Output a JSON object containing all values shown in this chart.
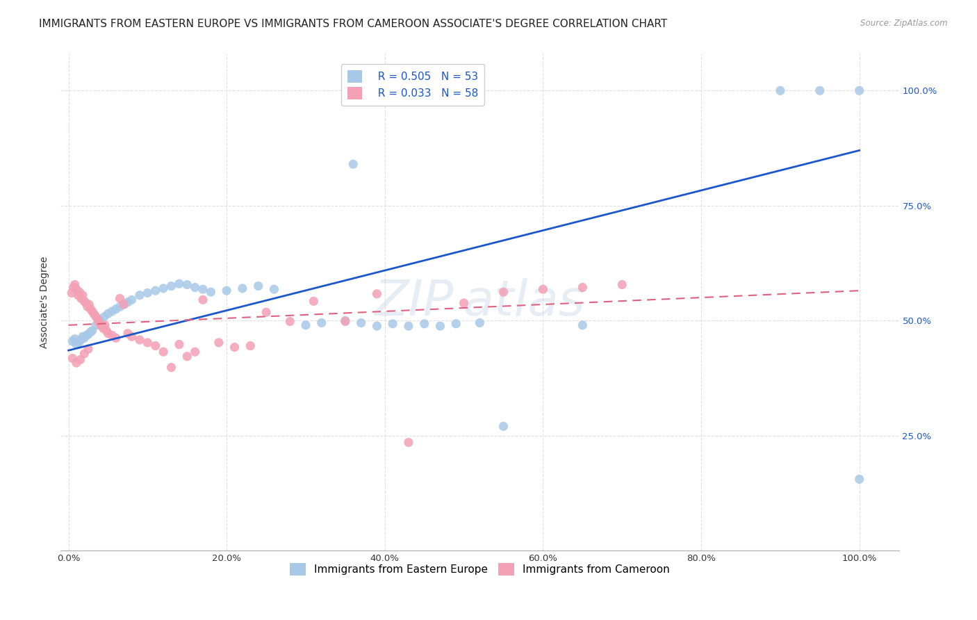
{
  "title": "IMMIGRANTS FROM EASTERN EUROPE VS IMMIGRANTS FROM CAMEROON ASSOCIATE'S DEGREE CORRELATION CHART",
  "source": "Source: ZipAtlas.com",
  "ylabel": "Associate's Degree",
  "legend_label_1": "Immigrants from Eastern Europe",
  "legend_label_2": "Immigrants from Cameroon",
  "r1": "0.505",
  "n1": "53",
  "r2": "0.033",
  "n2": "58",
  "color_blue": "#a8c8e8",
  "color_pink": "#f4a0b5",
  "line_blue": "#1a56cc",
  "line_pink": "#e06080",
  "bg_color": "#ffffff",
  "grid_color": "#e0e0e0",
  "xtick_labels": [
    "0.0%",
    "20.0%",
    "40.0%",
    "60.0%",
    "80.0%",
    "100.0%"
  ],
  "xtick_vals": [
    0.0,
    0.2,
    0.4,
    0.6,
    0.8,
    1.0
  ],
  "ytick_labels": [
    "25.0%",
    "50.0%",
    "75.0%",
    "100.0%"
  ],
  "ytick_vals": [
    0.25,
    0.5,
    0.75,
    1.0
  ],
  "ymin": 0.0,
  "ymax": 1.08,
  "blue_x": [
    0.005,
    0.008,
    0.01,
    0.013,
    0.016,
    0.018,
    0.02,
    0.023,
    0.025,
    0.028,
    0.03,
    0.035,
    0.04,
    0.045,
    0.05,
    0.055,
    0.06,
    0.065,
    0.07,
    0.075,
    0.08,
    0.09,
    0.1,
    0.11,
    0.12,
    0.13,
    0.14,
    0.15,
    0.16,
    0.17,
    0.18,
    0.2,
    0.22,
    0.24,
    0.26,
    0.3,
    0.32,
    0.35,
    0.37,
    0.39,
    0.41,
    0.43,
    0.45,
    0.47,
    0.49,
    0.52,
    0.55,
    0.65,
    0.9,
    0.95,
    1.0,
    1.0,
    0.36
  ],
  "blue_y": [
    0.455,
    0.46,
    0.448,
    0.452,
    0.458,
    0.465,
    0.462,
    0.468,
    0.47,
    0.475,
    0.478,
    0.49,
    0.5,
    0.508,
    0.515,
    0.52,
    0.525,
    0.53,
    0.535,
    0.54,
    0.545,
    0.555,
    0.56,
    0.565,
    0.57,
    0.575,
    0.58,
    0.578,
    0.572,
    0.568,
    0.562,
    0.565,
    0.57,
    0.575,
    0.568,
    0.49,
    0.495,
    0.5,
    0.495,
    0.488,
    0.493,
    0.488,
    0.493,
    0.488,
    0.493,
    0.495,
    0.27,
    0.49,
    1.0,
    1.0,
    1.0,
    0.155,
    0.84
  ],
  "pink_x": [
    0.004,
    0.006,
    0.008,
    0.01,
    0.012,
    0.014,
    0.016,
    0.018,
    0.02,
    0.022,
    0.024,
    0.026,
    0.028,
    0.03,
    0.032,
    0.034,
    0.036,
    0.038,
    0.04,
    0.042,
    0.044,
    0.046,
    0.048,
    0.05,
    0.055,
    0.06,
    0.065,
    0.07,
    0.075,
    0.08,
    0.09,
    0.1,
    0.11,
    0.12,
    0.13,
    0.14,
    0.15,
    0.16,
    0.17,
    0.19,
    0.21,
    0.23,
    0.25,
    0.28,
    0.31,
    0.35,
    0.39,
    0.43,
    0.5,
    0.55,
    0.6,
    0.65,
    0.7,
    0.005,
    0.01,
    0.015,
    0.02,
    0.025
  ],
  "pink_y": [
    0.56,
    0.572,
    0.578,
    0.568,
    0.555,
    0.562,
    0.548,
    0.555,
    0.542,
    0.538,
    0.53,
    0.535,
    0.525,
    0.52,
    0.515,
    0.51,
    0.505,
    0.498,
    0.492,
    0.488,
    0.483,
    0.49,
    0.478,
    0.472,
    0.468,
    0.462,
    0.548,
    0.535,
    0.472,
    0.465,
    0.458,
    0.452,
    0.445,
    0.432,
    0.398,
    0.448,
    0.422,
    0.432,
    0.545,
    0.452,
    0.442,
    0.445,
    0.518,
    0.498,
    0.542,
    0.498,
    0.558,
    0.235,
    0.538,
    0.562,
    0.568,
    0.572,
    0.578,
    0.418,
    0.408,
    0.415,
    0.428,
    0.438
  ],
  "blue_line_x0": 0.0,
  "blue_line_y0": 0.435,
  "blue_line_x1": 1.0,
  "blue_line_y1": 0.87,
  "pink_line_x0": 0.0,
  "pink_line_y0": 0.49,
  "pink_line_x1": 1.0,
  "pink_line_y1": 0.565,
  "title_fontsize": 11,
  "axis_label_fontsize": 10,
  "tick_fontsize": 9.5,
  "legend_fontsize": 11
}
